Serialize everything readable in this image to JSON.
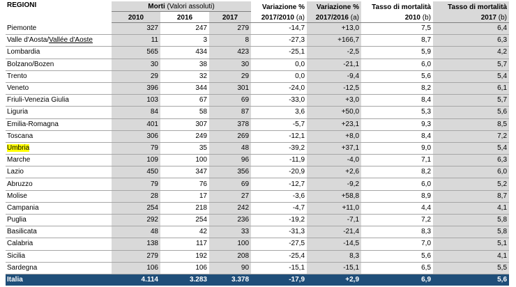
{
  "header": {
    "regioni": "REGIONI",
    "morti": "Morti",
    "morti_sub": "(Valori assoluti)",
    "y2010": "2010",
    "y2016": "2016",
    "y2017": "2017",
    "var1_l1": "Variazione %",
    "var1_l2": "2017/2010",
    "var1_sub": "(a)",
    "var2_l1": "Variazione %",
    "var2_l2": "2017/2016",
    "var2_sub": "(a)",
    "tasso1_l1": "Tasso di mortalità",
    "tasso1_l2": "2010",
    "tasso1_sub": "(b)",
    "tasso2_l1": "Tasso di mortalità",
    "tasso2_l2": "2017",
    "tasso2_sub": "(b)"
  },
  "rows": [
    {
      "region": "Piemonte",
      "m2010": "327",
      "m2016": "247",
      "m2017": "279",
      "v1710": "-14,7",
      "v1716": "+13,0",
      "t2010": "7,5",
      "t2017": "6,4"
    },
    {
      "region": "Valle d'Aosta/",
      "region_alt": "Vallée d'Aoste",
      "m2010": "11",
      "m2016": "3",
      "m2017": "8",
      "v1710": "-27,3",
      "v1716": "+166,7",
      "t2010": "8,7",
      "t2017": "6,3"
    },
    {
      "region": "Lombardia",
      "m2010": "565",
      "m2016": "434",
      "m2017": "423",
      "v1710": "-25,1",
      "v1716": "-2,5",
      "t2010": "5,9",
      "t2017": "4,2"
    },
    {
      "region": "Bolzano/Bozen",
      "m2010": "30",
      "m2016": "38",
      "m2017": "30",
      "v1710": "0,0",
      "v1716": "-21,1",
      "t2010": "6,0",
      "t2017": "5,7"
    },
    {
      "region": "Trento",
      "m2010": "29",
      "m2016": "32",
      "m2017": "29",
      "v1710": "0,0",
      "v1716": "-9,4",
      "t2010": "5,6",
      "t2017": "5,4"
    },
    {
      "region": "Veneto",
      "m2010": "396",
      "m2016": "344",
      "m2017": "301",
      "v1710": "-24,0",
      "v1716": "-12,5",
      "t2010": "8,2",
      "t2017": "6,1"
    },
    {
      "region": "Friuli-Venezia Giulia",
      "m2010": "103",
      "m2016": "67",
      "m2017": "69",
      "v1710": "-33,0",
      "v1716": "+3,0",
      "t2010": "8,4",
      "t2017": "5,7"
    },
    {
      "region": "Liguria",
      "m2010": "84",
      "m2016": "58",
      "m2017": "87",
      "v1710": "3,6",
      "v1716": "+50,0",
      "t2010": "5,3",
      "t2017": "5,6"
    },
    {
      "region": "Emilia-Romagna",
      "m2010": "401",
      "m2016": "307",
      "m2017": "378",
      "v1710": "-5,7",
      "v1716": "+23,1",
      "t2010": "9,3",
      "t2017": "8,5"
    },
    {
      "region": "Toscana",
      "m2010": "306",
      "m2016": "249",
      "m2017": "269",
      "v1710": "-12,1",
      "v1716": "+8,0",
      "t2010": "8,4",
      "t2017": "7,2"
    },
    {
      "region": "Umbria",
      "m2010": "79",
      "m2016": "35",
      "m2017": "48",
      "v1710": "-39,2",
      "v1716": "+37,1",
      "t2010": "9,0",
      "t2017": "5,4"
    },
    {
      "region": "Marche",
      "m2010": "109",
      "m2016": "100",
      "m2017": "96",
      "v1710": "-11,9",
      "v1716": "-4,0",
      "t2010": "7,1",
      "t2017": "6,3"
    },
    {
      "region": "Lazio",
      "m2010": "450",
      "m2016": "347",
      "m2017": "356",
      "v1710": "-20,9",
      "v1716": "+2,6",
      "t2010": "8,2",
      "t2017": "6,0"
    },
    {
      "region": "Abruzzo",
      "m2010": "79",
      "m2016": "76",
      "m2017": "69",
      "v1710": "-12,7",
      "v1716": "-9,2",
      "t2010": "6,0",
      "t2017": "5,2"
    },
    {
      "region": "Molise",
      "m2010": "28",
      "m2016": "17",
      "m2017": "27",
      "v1710": "-3,6",
      "v1716": "+58,8",
      "t2010": "8,9",
      "t2017": "8,7"
    },
    {
      "region": "Campania",
      "m2010": "254",
      "m2016": "218",
      "m2017": "242",
      "v1710": "-4,7",
      "v1716": "+11,0",
      "t2010": "4,4",
      "t2017": "4,1"
    },
    {
      "region": "Puglia",
      "m2010": "292",
      "m2016": "254",
      "m2017": "236",
      "v1710": "-19,2",
      "v1716": "-7,1",
      "t2010": "7,2",
      "t2017": "5,8"
    },
    {
      "region": "Basilicata",
      "m2010": "48",
      "m2016": "42",
      "m2017": "33",
      "v1710": "-31,3",
      "v1716": "-21,4",
      "t2010": "8,3",
      "t2017": "5,8"
    },
    {
      "region": "Calabria",
      "m2010": "138",
      "m2016": "117",
      "m2017": "100",
      "v1710": "-27,5",
      "v1716": "-14,5",
      "t2010": "7,0",
      "t2017": "5,1"
    },
    {
      "region": "Sicilia",
      "m2010": "279",
      "m2016": "192",
      "m2017": "208",
      "v1710": "-25,4",
      "v1716": "8,3",
      "t2010": "5,6",
      "t2017": "4,1"
    },
    {
      "region": "Sardegna",
      "m2010": "106",
      "m2016": "106",
      "m2017": "90",
      "v1710": "-15,1",
      "v1716": "-15,1",
      "t2010": "6,5",
      "t2017": "5,5"
    }
  ],
  "total": {
    "region": "Italia",
    "m2010": "4.114",
    "m2016": "3.283",
    "m2017": "3.378",
    "v1710": "-17,9",
    "v1716": "+2,9",
    "t2010": "6,9",
    "t2017": "5,6"
  },
  "colors": {
    "header_grey": "#d9d9d9",
    "total_bg": "#1f4e79",
    "highlight": "#ffff00"
  }
}
